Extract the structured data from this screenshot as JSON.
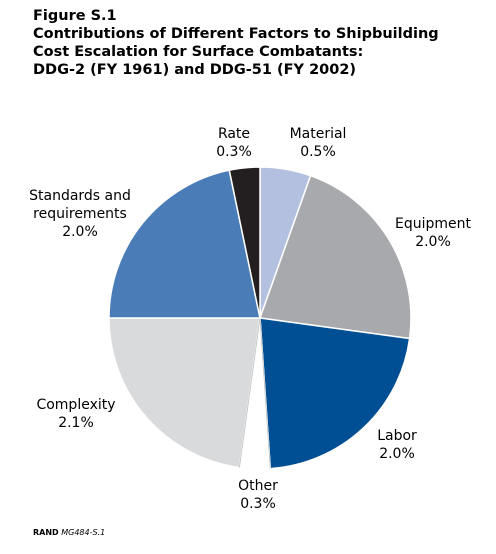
{
  "figure": {
    "label": "Figure S.1",
    "title_lines": [
      "Contributions of Different Factors to Shipbuilding",
      "Cost Escalation for Surface Combatants:",
      "DDG-2 (FY 1961) and DDG-51 (FY 2002)"
    ]
  },
  "credit": {
    "org": "RAND",
    "code": "MG484-S.1"
  },
  "chart_data": {
    "type": "pie",
    "title": "Contributions of Different Factors to Shipbuilding Cost Escalation for Surface Combatants: DDG-2 (FY 1961) and DDG-51 (FY 2002)",
    "unit": "%",
    "slices": [
      {
        "name": "Material",
        "value": 0.5,
        "value_label": "0.5%",
        "color": "#b3c0e0",
        "label_lines": [
          "Material"
        ]
      },
      {
        "name": "Equipment",
        "value": 2.0,
        "value_label": "2.0%",
        "color": "#a7a9ac",
        "label_lines": [
          "Equipment"
        ]
      },
      {
        "name": "Labor",
        "value": 2.0,
        "value_label": "2.0%",
        "color": "#004f94",
        "label_lines": [
          "Labor"
        ]
      },
      {
        "name": "Other",
        "value": 0.3,
        "value_label": "0.3%",
        "color": "#ffffff",
        "label_lines": [
          "Other"
        ]
      },
      {
        "name": "Complexity",
        "value": 2.1,
        "value_label": "2.1%",
        "color": "#d9dadb",
        "label_lines": [
          "Complexity"
        ]
      },
      {
        "name": "Standards and requirements",
        "value": 2.0,
        "value_label": "2.0%",
        "color": "#4a7db8",
        "label_lines": [
          "Standards and",
          "requirements"
        ]
      },
      {
        "name": "Rate",
        "value": 0.3,
        "value_label": "0.3%",
        "color": "#231f20",
        "label_lines": [
          "Rate"
        ]
      }
    ],
    "start_angle_deg": 0,
    "direction": "clockwise",
    "legend": "none"
  }
}
